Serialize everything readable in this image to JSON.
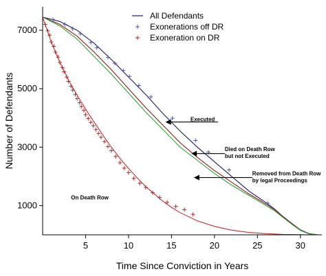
{
  "chart_data": {
    "type": "line",
    "title": "",
    "xlabel": "Time Since Conviction in Years",
    "ylabel": "Number of Defendants",
    "xlim": [
      0,
      32.5
    ],
    "ylim": [
      0,
      7800
    ],
    "x_ticks": [
      5,
      10,
      15,
      20,
      25,
      30
    ],
    "y_ticks": [
      1000,
      3000,
      5000,
      7000
    ],
    "grid": false,
    "legend_position": "top-center",
    "legend": [
      {
        "label": "All Defendants",
        "symbol": "line",
        "color": "#1a1a6e"
      },
      {
        "label": "Exonerations off DR",
        "symbol": "plus",
        "color": "#5555aa"
      },
      {
        "label": "Exoneration on DR",
        "symbol": "plus",
        "color": "#aa2a2a"
      }
    ],
    "series": [
      {
        "name": "All Defendants",
        "color": "#1a1a6e",
        "x": [
          0,
          2,
          4,
          6,
          8,
          10,
          12,
          14,
          16,
          18,
          20,
          22,
          24,
          26,
          27,
          28,
          29,
          30,
          31,
          32
        ],
        "y": [
          7450,
          7300,
          7000,
          6550,
          6000,
          5400,
          4800,
          4150,
          3550,
          3000,
          2500,
          2000,
          1500,
          1100,
          880,
          620,
          390,
          170,
          40,
          0
        ]
      },
      {
        "color": "#8b1a1a",
        "x": [
          0,
          2,
          4,
          6,
          8,
          10,
          12,
          14,
          16,
          18,
          20,
          22,
          24,
          26,
          27,
          28,
          29,
          30,
          31,
          32
        ],
        "y": [
          7450,
          7200,
          6800,
          6250,
          5650,
          5000,
          4350,
          3750,
          3150,
          2650,
          2200,
          1800,
          1400,
          1050,
          860,
          610,
          380,
          160,
          35,
          0
        ]
      },
      {
        "color": "#33a033",
        "x": [
          0,
          2,
          4,
          6,
          8,
          10,
          12,
          14,
          16,
          18,
          20,
          22,
          24,
          26,
          27,
          28,
          29,
          30,
          31,
          32
        ],
        "y": [
          7450,
          7150,
          6700,
          6100,
          5500,
          4850,
          4200,
          3600,
          3000,
          2550,
          2100,
          1700,
          1350,
          1000,
          820,
          590,
          360,
          150,
          30,
          0
        ]
      },
      {
        "color": "#c03030",
        "x": [
          0,
          1,
          2,
          3,
          4,
          5,
          6,
          7,
          8,
          9,
          10,
          11,
          12,
          13,
          14,
          15,
          16,
          18,
          20,
          22,
          24,
          26,
          28,
          30,
          31.5
        ],
        "y": [
          7450,
          6600,
          5900,
          5300,
          4780,
          4300,
          3850,
          3420,
          3000,
          2620,
          2270,
          1950,
          1650,
          1400,
          1150,
          940,
          760,
          480,
          290,
          160,
          80,
          40,
          15,
          5,
          0
        ]
      }
    ],
    "markers": [
      {
        "series": "Exonerations off DR",
        "color": "#5555aa",
        "x": [
          1.2,
          2.6,
          3.5,
          4.4,
          5.6,
          6.3,
          7.6,
          8.4,
          9.4,
          10.1,
          11.2,
          12.6,
          15.1,
          17.8,
          19.3,
          21.7,
          26.2
        ],
        "y": [
          7370,
          7200,
          7050,
          6880,
          6580,
          6400,
          6070,
          5870,
          5620,
          5420,
          5110,
          4720,
          3990,
          3230,
          2830,
          2220,
          1080
        ]
      },
      {
        "series": "Exoneration on DR",
        "color": "#aa2a2a",
        "x": [
          0.3,
          0.6,
          0.8,
          1.0,
          1.3,
          1.5,
          1.8,
          2.0,
          2.3,
          2.5,
          2.8,
          3.0,
          3.3,
          3.5,
          3.8,
          4.0,
          4.3,
          4.5,
          4.8,
          5.0,
          5.3,
          5.6,
          5.9,
          6.2,
          6.5,
          6.8,
          7.2,
          7.6,
          8.0,
          8.5,
          9.0,
          9.5,
          10.0,
          10.6,
          11.3,
          12.0,
          12.8,
          13.6,
          14.5,
          15.5,
          16.5,
          17.5
        ],
        "y": [
          7200,
          6980,
          6830,
          6600,
          6450,
          6250,
          6080,
          5900,
          5720,
          5580,
          5400,
          5250,
          5080,
          4950,
          4800,
          4660,
          4520,
          4390,
          4260,
          4110,
          3980,
          3850,
          3730,
          3600,
          3470,
          3340,
          3190,
          3020,
          2880,
          2680,
          2470,
          2280,
          2130,
          1930,
          1760,
          1620,
          1440,
          1280,
          1110,
          970,
          860,
          700
        ]
      }
    ],
    "annotations": [
      {
        "lines": [
          "Executed"
        ],
        "x": 17.2,
        "y": 3890
      },
      {
        "lines": [
          "Died on Death Row",
          "but not Executed"
        ],
        "x": 21.2,
        "y": 2870
      },
      {
        "lines": [
          "Removed from Death Row",
          "by legal Proceedings"
        ],
        "x": 24.4,
        "y": 2030
      },
      {
        "lines": [
          "On Death Row"
        ],
        "x": 3.3,
        "y": 1210
      }
    ],
    "arrows": [
      {
        "from": [
          20.4,
          3860
        ],
        "to": [
          14.3,
          3860
        ]
      },
      {
        "from": [
          21.2,
          2780
        ],
        "to": [
          17.3,
          2780
        ]
      },
      {
        "from": [
          24.4,
          1960
        ],
        "to": [
          17.6,
          1960
        ]
      }
    ]
  }
}
